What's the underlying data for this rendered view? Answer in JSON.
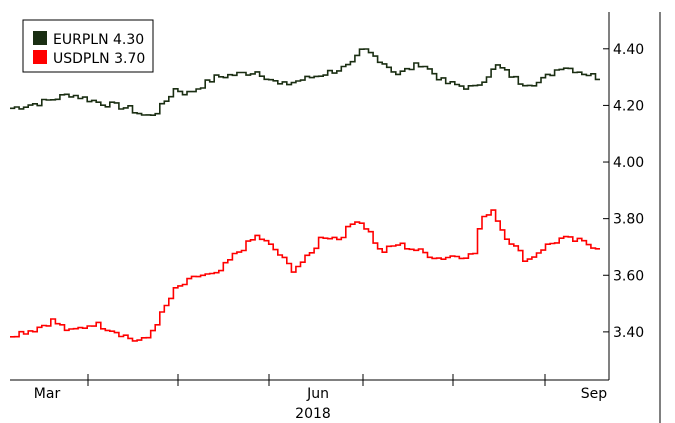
{
  "chart_data": {
    "type": "line",
    "x_tick_labels": [
      "Mar",
      "Jun",
      "Sep"
    ],
    "x_sub_label": "2018",
    "y_tick_labels": [
      "3.40",
      "3.60",
      "3.80",
      "4.00",
      "4.20",
      "4.40"
    ],
    "ylim": [
      3.23,
      4.53
    ],
    "grid": false,
    "legend_position": "top-left",
    "series": [
      {
        "name": "EURPLN",
        "last_value": "4.30",
        "color": "#1a2e12",
        "anchors": [
          [
            0,
            4.19
          ],
          [
            0.05,
            4.21
          ],
          [
            0.1,
            4.24
          ],
          [
            0.15,
            4.21
          ],
          [
            0.2,
            4.19
          ],
          [
            0.23,
            4.16
          ],
          [
            0.25,
            4.18
          ],
          [
            0.28,
            4.26
          ],
          [
            0.3,
            4.24
          ],
          [
            0.35,
            4.3
          ],
          [
            0.42,
            4.32
          ],
          [
            0.46,
            4.27
          ],
          [
            0.53,
            4.31
          ],
          [
            0.58,
            4.34
          ],
          [
            0.6,
            4.4
          ],
          [
            0.63,
            4.36
          ],
          [
            0.66,
            4.31
          ],
          [
            0.7,
            4.35
          ],
          [
            0.74,
            4.28
          ],
          [
            0.79,
            4.26
          ],
          [
            0.83,
            4.34
          ],
          [
            0.87,
            4.28
          ],
          [
            0.9,
            4.28
          ],
          [
            0.94,
            4.34
          ],
          [
            0.97,
            4.32
          ],
          [
            1.0,
            4.3
          ]
        ]
      },
      {
        "name": "USDPLN",
        "last_value": "3.70",
        "color": "#ff0000",
        "anchors": [
          [
            0,
            3.39
          ],
          [
            0.04,
            3.41
          ],
          [
            0.07,
            3.44
          ],
          [
            0.1,
            3.4
          ],
          [
            0.14,
            3.43
          ],
          [
            0.17,
            3.41
          ],
          [
            0.21,
            3.37
          ],
          [
            0.23,
            3.37
          ],
          [
            0.25,
            3.44
          ],
          [
            0.28,
            3.55
          ],
          [
            0.32,
            3.6
          ],
          [
            0.35,
            3.6
          ],
          [
            0.38,
            3.67
          ],
          [
            0.42,
            3.74
          ],
          [
            0.45,
            3.69
          ],
          [
            0.48,
            3.62
          ],
          [
            0.51,
            3.67
          ],
          [
            0.53,
            3.74
          ],
          [
            0.56,
            3.73
          ],
          [
            0.59,
            3.8
          ],
          [
            0.61,
            3.76
          ],
          [
            0.63,
            3.68
          ],
          [
            0.66,
            3.71
          ],
          [
            0.69,
            3.69
          ],
          [
            0.73,
            3.66
          ],
          [
            0.76,
            3.67
          ],
          [
            0.79,
            3.67
          ],
          [
            0.8,
            3.78
          ],
          [
            0.82,
            3.84
          ],
          [
            0.84,
            3.75
          ],
          [
            0.86,
            3.7
          ],
          [
            0.88,
            3.65
          ],
          [
            0.91,
            3.7
          ],
          [
            0.94,
            3.73
          ],
          [
            0.97,
            3.72
          ],
          [
            1.0,
            3.7
          ]
        ]
      }
    ]
  }
}
